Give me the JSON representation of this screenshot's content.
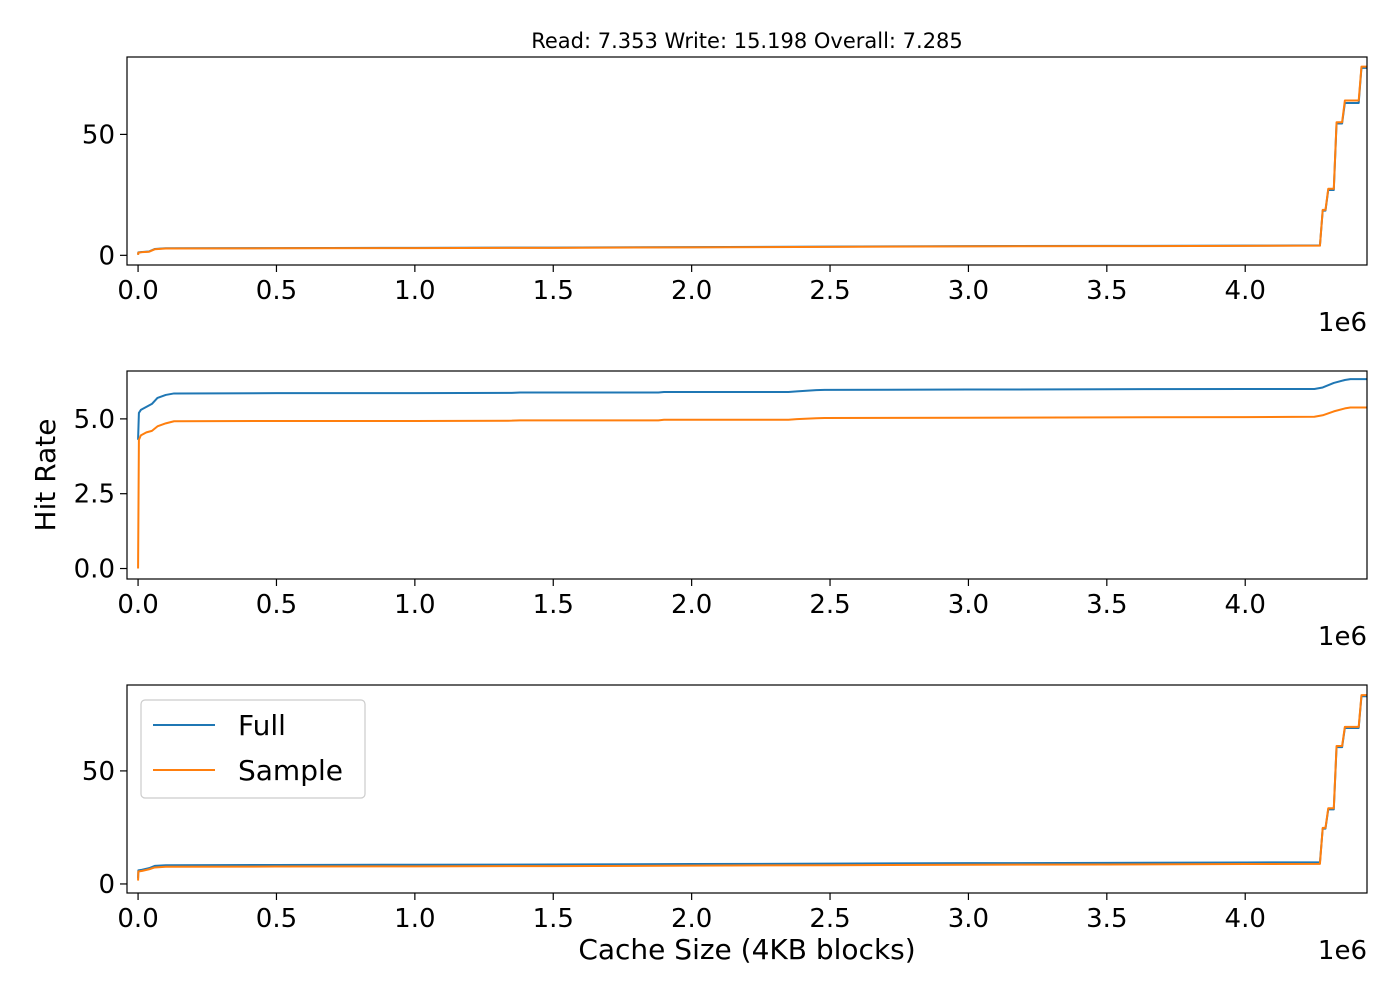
{
  "chart_data": [
    {
      "type": "line",
      "title": "Read: 7.353 Write: 15.198 Overall: 7.285",
      "xlabel": "",
      "ylabel": "",
      "xlim": [
        -40000,
        4440000
      ],
      "ylim": [
        -4,
        82
      ],
      "x_offset_label": "1e6",
      "xticks": [
        0,
        500000,
        1000000,
        1500000,
        2000000,
        2500000,
        3000000,
        3500000,
        4000000
      ],
      "xtick_labels": [
        "0.0",
        "0.5",
        "1.0",
        "1.5",
        "2.0",
        "2.5",
        "3.0",
        "3.5",
        "4.0"
      ],
      "yticks": [
        0,
        50
      ],
      "ytick_labels": [
        "0",
        "50"
      ],
      "series": [
        {
          "color": "#1f77b4",
          "x": [
            0,
            1000,
            15000,
            40000,
            60000,
            100000,
            500000,
            1000000,
            1500000,
            2000000,
            2500000,
            3000000,
            3500000,
            4000000,
            4270000,
            4280000,
            4290000,
            4300000,
            4310000,
            4320000,
            4330000,
            4350000,
            4360000,
            4370000,
            4410000,
            4420000,
            4440000
          ],
          "y": [
            0.3,
            1.2,
            1.4,
            1.6,
            2.6,
            2.9,
            3.0,
            3.1,
            3.2,
            3.4,
            3.6,
            3.8,
            3.9,
            4.0,
            4.1,
            18.5,
            18.5,
            27,
            27,
            27,
            54.5,
            54.5,
            63,
            63,
            63,
            77.5,
            77.5
          ]
        },
        {
          "color": "#ff7f0e",
          "x": [
            0,
            1000,
            15000,
            40000,
            60000,
            100000,
            500000,
            1000000,
            1500000,
            2000000,
            2500000,
            3000000,
            3500000,
            4000000,
            4270000,
            4280000,
            4290000,
            4300000,
            4310000,
            4320000,
            4330000,
            4350000,
            4360000,
            4370000,
            4410000,
            4420000,
            4440000
          ],
          "y": [
            0.2,
            1.1,
            1.3,
            1.5,
            2.5,
            2.8,
            2.9,
            3.0,
            3.1,
            3.3,
            3.5,
            3.7,
            3.8,
            3.9,
            4.0,
            18.8,
            18.8,
            27.5,
            27.5,
            27.5,
            55,
            55,
            64,
            64,
            64,
            78,
            78
          ]
        }
      ]
    },
    {
      "type": "line",
      "title": "",
      "xlabel": "",
      "ylabel": "Hit Rate",
      "xlim": [
        -40000,
        4440000
      ],
      "ylim": [
        -0.35,
        6.6
      ],
      "x_offset_label": "1e6",
      "xticks": [
        0,
        500000,
        1000000,
        1500000,
        2000000,
        2500000,
        3000000,
        3500000,
        4000000
      ],
      "xtick_labels": [
        "0.0",
        "0.5",
        "1.0",
        "1.5",
        "2.0",
        "2.5",
        "3.0",
        "3.5",
        "4.0"
      ],
      "yticks": [
        0,
        2.5,
        5.0
      ],
      "ytick_labels": [
        "0.0",
        "2.5",
        "5.0"
      ],
      "series": [
        {
          "color": "#1f77b4",
          "x": [
            0,
            3000,
            10000,
            30000,
            50000,
            70000,
            100000,
            130000,
            500000,
            1000000,
            1350000,
            1380000,
            1880000,
            1900000,
            2350000,
            2380000,
            2450000,
            2480000,
            3000000,
            3500000,
            4000000,
            4250000,
            4280000,
            4320000,
            4360000,
            4380000,
            4440000
          ],
          "y": [
            4.3,
            5.2,
            5.3,
            5.4,
            5.5,
            5.7,
            5.8,
            5.85,
            5.86,
            5.86,
            5.87,
            5.88,
            5.88,
            5.9,
            5.9,
            5.92,
            5.96,
            5.97,
            5.98,
            5.99,
            6.0,
            6.0,
            6.05,
            6.2,
            6.3,
            6.33,
            6.33
          ]
        },
        {
          "color": "#ff7f0e",
          "x": [
            0,
            3000,
            10000,
            30000,
            50000,
            70000,
            100000,
            130000,
            500000,
            1000000,
            1350000,
            1380000,
            1880000,
            1900000,
            2350000,
            2380000,
            2450000,
            2480000,
            3000000,
            3500000,
            4000000,
            4250000,
            4280000,
            4320000,
            4360000,
            4380000,
            4440000
          ],
          "y": [
            0.0,
            4.3,
            4.45,
            4.55,
            4.6,
            4.75,
            4.85,
            4.92,
            4.93,
            4.93,
            4.94,
            4.95,
            4.95,
            4.97,
            4.97,
            4.99,
            5.02,
            5.03,
            5.04,
            5.05,
            5.06,
            5.07,
            5.12,
            5.25,
            5.35,
            5.38,
            5.38
          ]
        }
      ]
    },
    {
      "type": "line",
      "title": "",
      "xlabel": "Cache Size (4KB blocks)",
      "ylabel": "",
      "xlim": [
        -40000,
        4440000
      ],
      "ylim": [
        -4,
        88
      ],
      "x_offset_label": "1e6",
      "xticks": [
        0,
        500000,
        1000000,
        1500000,
        2000000,
        2500000,
        3000000,
        3500000,
        4000000
      ],
      "xtick_labels": [
        "0.0",
        "0.5",
        "1.0",
        "1.5",
        "2.0",
        "2.5",
        "3.0",
        "3.5",
        "4.0"
      ],
      "yticks": [
        0,
        50
      ],
      "ytick_labels": [
        "0",
        "50"
      ],
      "legend": {
        "placement": "upper-left",
        "entries": [
          "Full",
          "Sample"
        ]
      },
      "series": [
        {
          "name": "Full",
          "color": "#1f77b4",
          "x": [
            0,
            1000,
            15000,
            40000,
            60000,
            100000,
            500000,
            1000000,
            1500000,
            2000000,
            2500000,
            3000000,
            3500000,
            4000000,
            4270000,
            4280000,
            4290000,
            4300000,
            4310000,
            4320000,
            4330000,
            4350000,
            4360000,
            4370000,
            4410000,
            4420000,
            4440000
          ],
          "y": [
            2.5,
            6.0,
            6.3,
            7.0,
            8.0,
            8.3,
            8.4,
            8.5,
            8.6,
            8.8,
            9.0,
            9.2,
            9.3,
            9.5,
            9.6,
            24.5,
            24.5,
            33,
            33,
            33,
            60.5,
            60.5,
            69,
            69,
            69,
            83,
            83
          ]
        },
        {
          "name": "Sample",
          "color": "#ff7f0e",
          "x": [
            0,
            1000,
            15000,
            40000,
            60000,
            100000,
            500000,
            1000000,
            1500000,
            2000000,
            2500000,
            3000000,
            3500000,
            4000000,
            4270000,
            4280000,
            4290000,
            4300000,
            4310000,
            4320000,
            4330000,
            4350000,
            4360000,
            4370000,
            4410000,
            4420000,
            4440000
          ],
          "y": [
            1.5,
            5.5,
            5.8,
            6.5,
            7.3,
            7.6,
            7.7,
            7.8,
            7.9,
            8.1,
            8.3,
            8.5,
            8.6,
            8.8,
            8.9,
            24.8,
            24.8,
            33.5,
            33.5,
            33.5,
            61,
            61,
            69.5,
            69.5,
            69.5,
            83.5,
            83.5
          ]
        }
      ]
    }
  ]
}
